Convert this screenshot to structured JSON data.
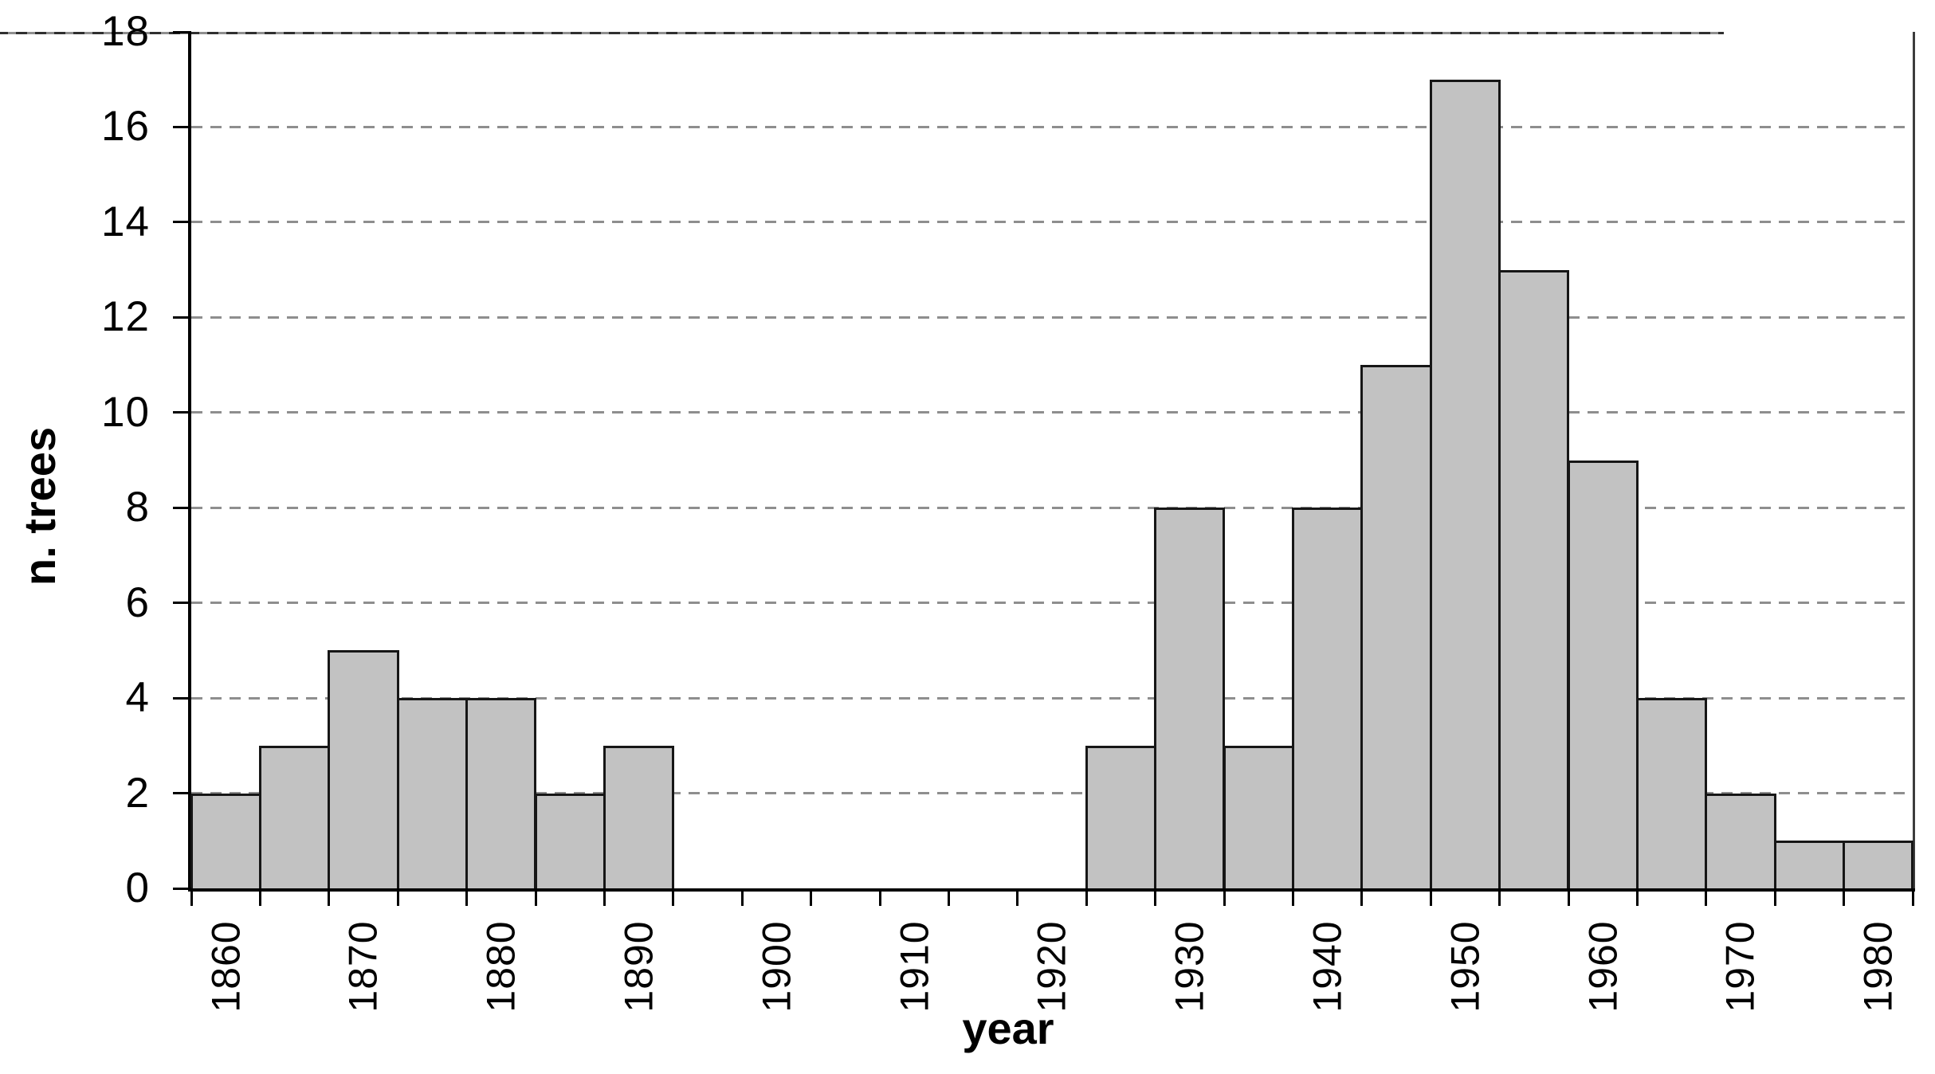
{
  "chart_data": {
    "type": "bar",
    "title": "",
    "xlabel": "year",
    "ylabel": "n. trees",
    "bin_width_years": 5,
    "categories": [
      1860,
      1865,
      1870,
      1875,
      1880,
      1885,
      1890,
      1895,
      1900,
      1905,
      1910,
      1915,
      1920,
      1925,
      1930,
      1935,
      1940,
      1945,
      1950,
      1955,
      1960,
      1965,
      1970,
      1975,
      1980
    ],
    "values": [
      2,
      3,
      5,
      4,
      4,
      2,
      3,
      0,
      0,
      0,
      0,
      0,
      0,
      3,
      8,
      3,
      8,
      11,
      17,
      13,
      9,
      4,
      2,
      1,
      1
    ],
    "x_tick_labels": [
      "1860",
      "1870",
      "1880",
      "1890",
      "1900",
      "1910",
      "1920",
      "1930",
      "1940",
      "1950",
      "1960",
      "1970",
      "1980"
    ],
    "y_ticks": [
      0,
      2,
      4,
      6,
      8,
      10,
      12,
      14,
      16,
      18
    ],
    "y_tick_labels": [
      "0",
      "2",
      "4",
      "6",
      "8",
      "10",
      "12",
      "14",
      "16",
      "18"
    ],
    "ylim": [
      0,
      18
    ],
    "grid": "horizontal dashed at even values",
    "legend": "none",
    "bar_fill": "#c2c2c2",
    "bar_border": "#161616",
    "gridline_color": "#8e8e8e",
    "axis_color": "#000000",
    "background_color": "#ffffff"
  }
}
